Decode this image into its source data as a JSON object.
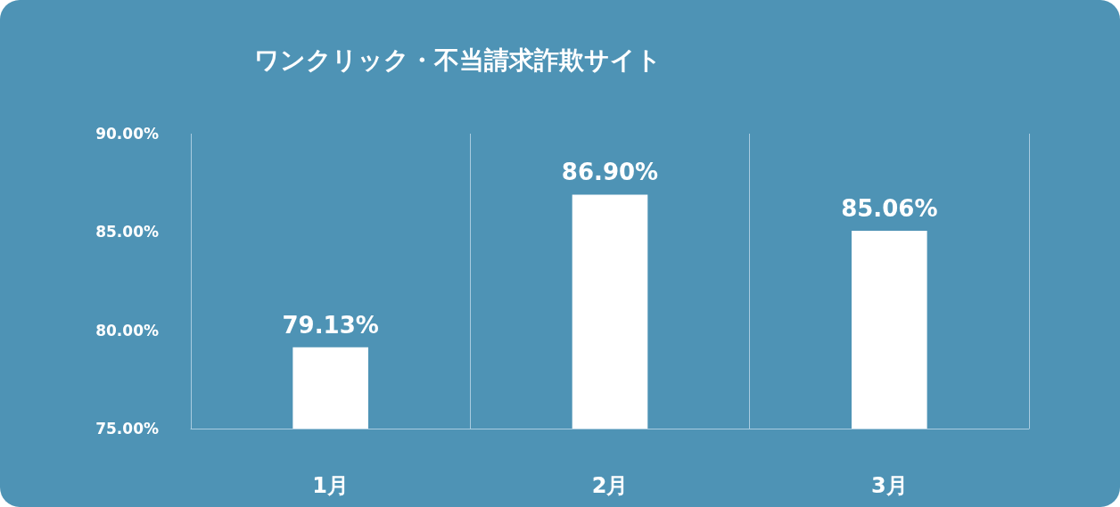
{
  "chart_data": {
    "type": "bar",
    "title": "ワンクリック・不当請求詐欺サイト",
    "categories": [
      "1月",
      "2月",
      "3月"
    ],
    "values": [
      79.13,
      86.9,
      85.06
    ],
    "value_labels": [
      "79.13%",
      "86.90%",
      "85.06%"
    ],
    "color": "#ffffff",
    "ylim": [
      75,
      90
    ],
    "yticks": [
      {
        "value": 75,
        "label": "75.00%"
      },
      {
        "value": 80,
        "label": "80.00%"
      },
      {
        "value": 85,
        "label": "85.00%"
      },
      {
        "value": 90,
        "label": "90.00%"
      }
    ],
    "grid": "x"
  }
}
